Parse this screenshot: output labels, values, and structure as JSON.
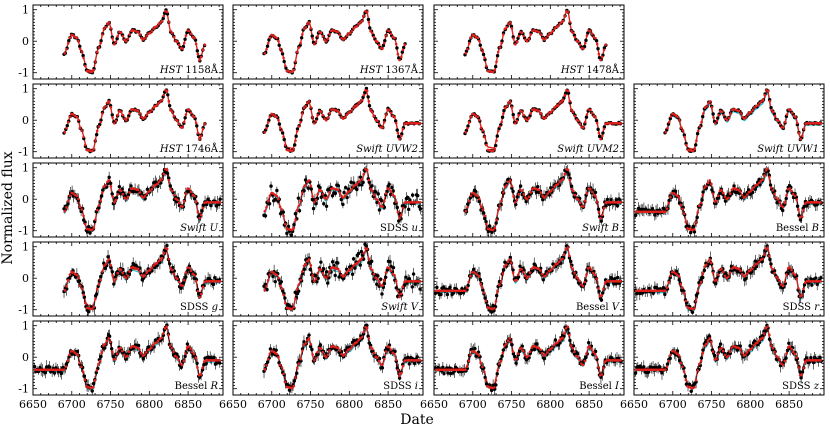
{
  "figure": {
    "xlabel": "Date",
    "ylabel": "Normalized flux"
  },
  "chart_data": {
    "type": "line",
    "title": "",
    "xlabel": "Date",
    "ylabel": "Normalized flux",
    "xlim": [
      6650,
      6895
    ],
    "ylim": [
      -1.2,
      1.15
    ],
    "x_ticks": [
      "6650",
      "6700",
      "6750",
      "6800",
      "6850"
    ],
    "y_ticks": [
      "-1",
      "0",
      "1"
    ],
    "colors": {
      "data": "#000000",
      "model_red": "#e0201b",
      "model_cyan": "#22c0d8"
    },
    "shared_curve": {
      "x": [
        6690,
        6700,
        6707,
        6712,
        6720,
        6727,
        6735,
        6742,
        6748,
        6755,
        6762,
        6770,
        6778,
        6785,
        6792,
        6800,
        6808,
        6815,
        6822,
        6828,
        6835,
        6842,
        6850,
        6858,
        6865,
        6872
      ],
      "y": [
        -0.4,
        0.2,
        0.1,
        -0.3,
        -0.95,
        -0.98,
        -0.2,
        0.4,
        0.6,
        -0.1,
        0.3,
        0.0,
        0.35,
        0.3,
        0.05,
        0.25,
        0.45,
        0.6,
        0.98,
        0.3,
        0.0,
        -0.25,
        0.35,
        0.1,
        -0.6,
        -0.1
      ]
    },
    "panels": [
      {
        "label_main": "HST",
        "label_rest": " 1158Å",
        "italic_main": true
      },
      {
        "label_main": "HST",
        "label_rest": " 1367Å",
        "italic_main": true
      },
      {
        "label_main": "HST",
        "label_rest": " 1478Å",
        "italic_main": true
      },
      {
        "label_main": "HST",
        "label_rest": " 1746Å",
        "italic_main": true
      },
      {
        "label_main": "Swift UVW2",
        "label_rest": "",
        "italic_main": true
      },
      {
        "label_main": "Swift UVM2",
        "label_rest": "",
        "italic_main": true
      },
      {
        "label_main": "Swift UVW1",
        "label_rest": "",
        "italic_main": true
      },
      {
        "label_main": "Swift U",
        "label_rest": "",
        "italic_main": true
      },
      {
        "label_main": "SDSS ",
        "label_rest": "u",
        "italic_rest": true
      },
      {
        "label_main": "Swift B",
        "label_rest": "",
        "italic_main": true
      },
      {
        "label_main": "Bessel ",
        "label_rest": "B",
        "italic_rest": true
      },
      {
        "label_main": "SDSS ",
        "label_rest": "g",
        "italic_rest": true
      },
      {
        "label_main": "Swift V",
        "label_rest": "",
        "italic_main": true
      },
      {
        "label_main": "Bessel ",
        "label_rest": "V",
        "italic_rest": true
      },
      {
        "label_main": "SDSS ",
        "label_rest": "r",
        "italic_rest": true
      },
      {
        "label_main": "Bessel ",
        "label_rest": "R",
        "italic_rest": true
      },
      {
        "label_main": "SDSS ",
        "label_rest": "i",
        "italic_rest": true
      },
      {
        "label_main": "Bessel ",
        "label_rest": "I",
        "italic_rest": true
      },
      {
        "label_main": "SDSS ",
        "label_rest": "z",
        "italic_rest": true
      }
    ]
  }
}
